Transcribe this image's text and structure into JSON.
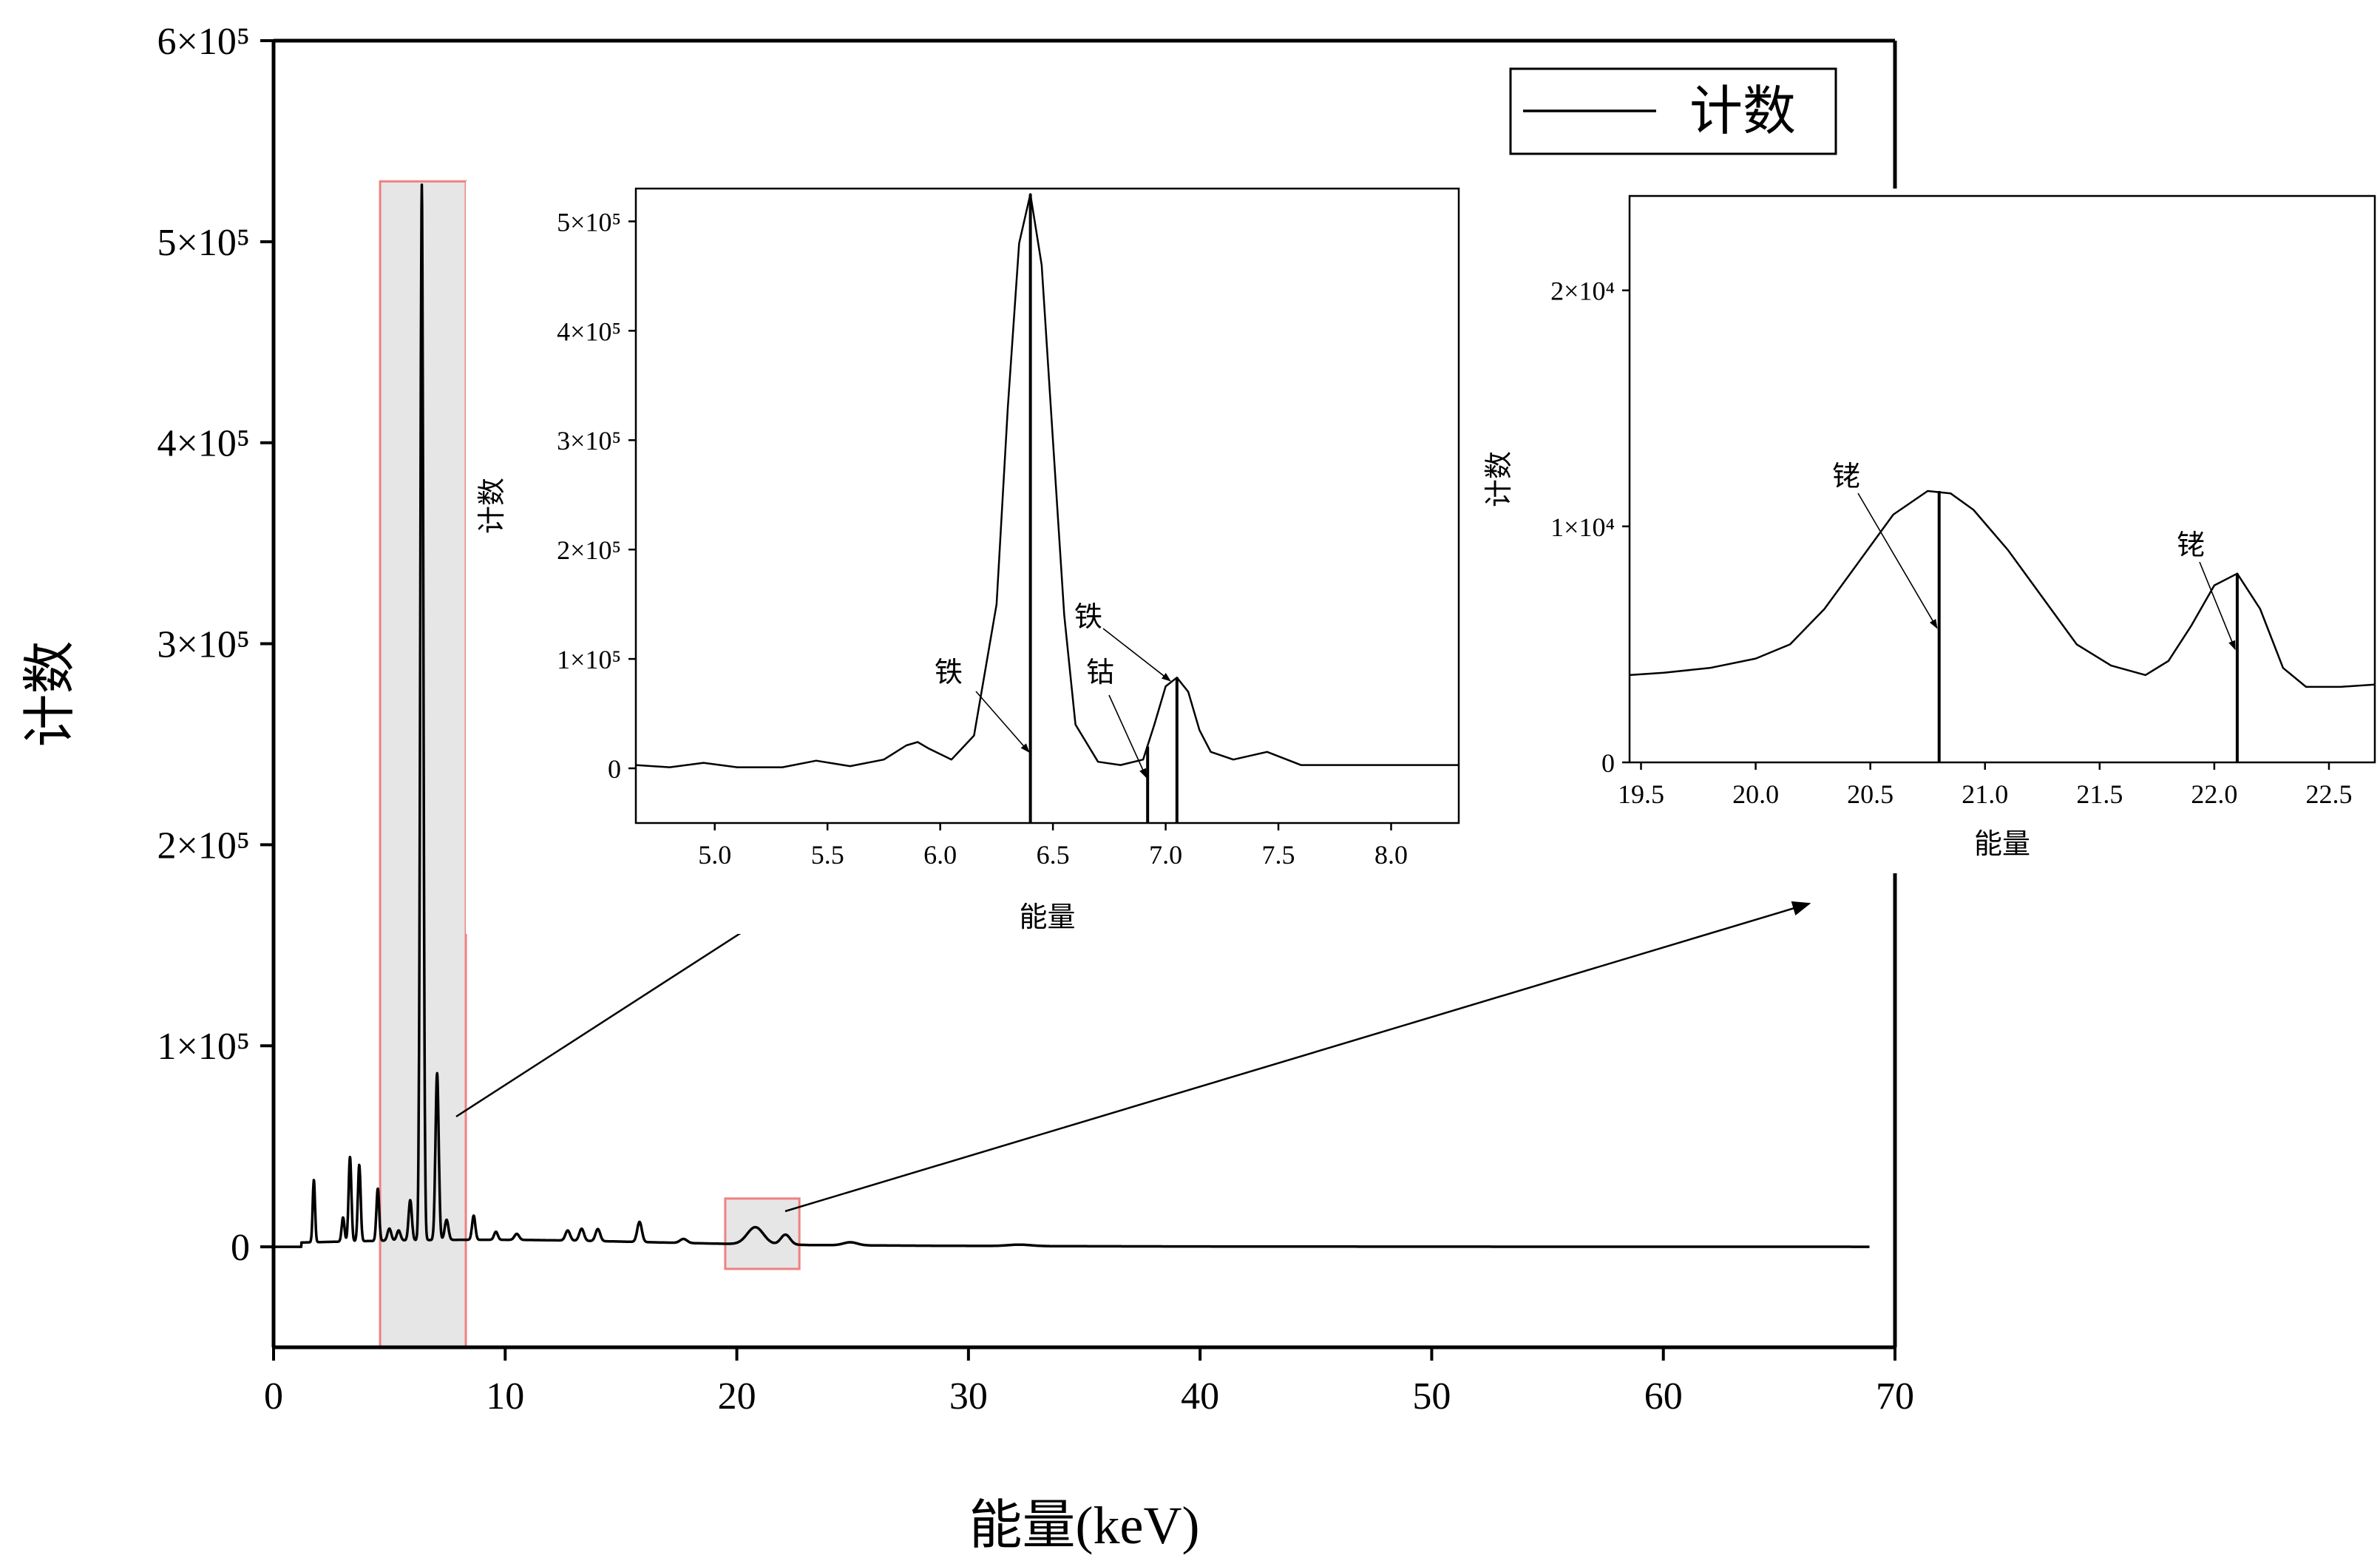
{
  "colors": {
    "line": "#000000",
    "highlight_fill": "#e6e6e6",
    "highlight_stroke": "#f08080"
  },
  "chart_data": [
    {
      "type": "line",
      "id": "main",
      "title": "",
      "xlabel": "能量(keV)",
      "ylabel": "计数",
      "xlim": [
        0,
        70
      ],
      "ylim": [
        -50000,
        600000
      ],
      "xticks": [
        0,
        10,
        20,
        30,
        40,
        50,
        60,
        70
      ],
      "yticks": [
        0,
        100000,
        200000,
        300000,
        400000,
        500000,
        600000
      ],
      "ytick_labels": [
        "0",
        "1×10⁵",
        "2×10⁵",
        "3×10⁵",
        "4×10⁵",
        "5×10⁵",
        "6×10⁵"
      ],
      "legend": {
        "position": "top-right",
        "entries": [
          "计数"
        ]
      },
      "series": [
        {
          "name": "计数",
          "peaks": [
            {
              "x": 1.74,
              "y": 31000,
              "w": 0.05
            },
            {
              "x": 3.0,
              "y": 12000,
              "w": 0.06
            },
            {
              "x": 3.3,
              "y": 42000,
              "w": 0.06
            },
            {
              "x": 3.7,
              "y": 38000,
              "w": 0.06
            },
            {
              "x": 4.5,
              "y": 26000,
              "w": 0.06
            },
            {
              "x": 5.0,
              "y": 6000,
              "w": 0.08
            },
            {
              "x": 5.4,
              "y": 5000,
              "w": 0.08
            },
            {
              "x": 5.9,
              "y": 20000,
              "w": 0.07
            },
            {
              "x": 6.4,
              "y": 525000,
              "w": 0.065
            },
            {
              "x": 7.06,
              "y": 83000,
              "w": 0.07
            },
            {
              "x": 7.47,
              "y": 10000,
              "w": 0.08
            },
            {
              "x": 8.64,
              "y": 12000,
              "w": 0.07
            },
            {
              "x": 9.6,
              "y": 4000,
              "w": 0.08
            },
            {
              "x": 10.5,
              "y": 3000,
              "w": 0.1
            },
            {
              "x": 12.7,
              "y": 5000,
              "w": 0.1
            },
            {
              "x": 13.3,
              "y": 6000,
              "w": 0.1
            },
            {
              "x": 14.0,
              "y": 6000,
              "w": 0.1
            },
            {
              "x": 15.8,
              "y": 10000,
              "w": 0.1
            },
            {
              "x": 17.7,
              "y": 2000,
              "w": 0.15
            },
            {
              "x": 20.8,
              "y": 8500,
              "w": 0.35
            },
            {
              "x": 22.1,
              "y": 5000,
              "w": 0.2
            },
            {
              "x": 24.9,
              "y": 1500,
              "w": 0.3
            },
            {
              "x": 32.2,
              "y": 700,
              "w": 0.5
            }
          ],
          "x_end": 68.9
        }
      ],
      "highlights": [
        {
          "x0": 4.6,
          "x1": 8.3,
          "y0": -50000,
          "y1": 530000
        },
        {
          "x0": 19.5,
          "x1": 22.7,
          "y0": -11000,
          "y1": 24000
        }
      ]
    },
    {
      "type": "line",
      "id": "inset1",
      "xlabel": "能量",
      "ylabel": "计数",
      "xlim": [
        4.65,
        8.3
      ],
      "ylim": [
        -50000,
        530000
      ],
      "xticks": [
        5.0,
        5.5,
        6.0,
        6.5,
        7.0,
        7.5,
        8.0
      ],
      "xtick_labels": [
        "5.0",
        "5.5",
        "6.0",
        "6.5",
        "7.0",
        "7.5",
        "8.0"
      ],
      "yticks": [
        0,
        100000,
        200000,
        300000,
        400000,
        500000
      ],
      "ytick_labels": [
        "0",
        "1×10⁵",
        "2×10⁵",
        "3×10⁵",
        "4×10⁵",
        "5×10⁵"
      ],
      "series": [
        {
          "name": "计数",
          "x": [
            4.65,
            4.8,
            4.95,
            5.1,
            5.3,
            5.45,
            5.6,
            5.75,
            5.85,
            5.9,
            5.95,
            6.05,
            6.15,
            6.25,
            6.3,
            6.35,
            6.4,
            6.45,
            6.5,
            6.55,
            6.6,
            6.7,
            6.8,
            6.9,
            6.95,
            7.0,
            7.05,
            7.1,
            7.15,
            7.2,
            7.3,
            7.45,
            7.6,
            7.8,
            8.0,
            8.3
          ],
          "y": [
            3000,
            1000,
            5000,
            1000,
            1000,
            7000,
            2000,
            8000,
            21000,
            24000,
            18000,
            8000,
            30000,
            150000,
            330000,
            480000,
            525000,
            460000,
            300000,
            140000,
            40000,
            6000,
            3000,
            8000,
            40000,
            75000,
            83000,
            70000,
            35000,
            15000,
            8000,
            15000,
            3000,
            3000,
            3000,
            3000
          ]
        }
      ],
      "markers": [
        {
          "x": 6.4,
          "label": "铁",
          "y_top": 525000
        },
        {
          "x": 6.92,
          "label": "钴",
          "y_top": 20000
        },
        {
          "x": 7.05,
          "label": "铁",
          "y_top": 83000
        }
      ]
    },
    {
      "type": "line",
      "id": "inset2",
      "xlabel": "能量",
      "ylabel": "计数",
      "xlim": [
        19.45,
        22.7
      ],
      "ylim": [
        0,
        24000
      ],
      "xticks": [
        19.5,
        20.0,
        20.5,
        21.0,
        21.5,
        22.0,
        22.5
      ],
      "xtick_labels": [
        "19.5",
        "20.0",
        "20.5",
        "21.0",
        "21.5",
        "22.0",
        "22.5"
      ],
      "yticks": [
        0,
        10000,
        20000
      ],
      "ytick_labels": [
        "0",
        "1×10⁴",
        "2×10⁴"
      ],
      "series": [
        {
          "name": "计数",
          "x": [
            19.45,
            19.6,
            19.8,
            20.0,
            20.15,
            20.3,
            20.45,
            20.6,
            20.75,
            20.85,
            20.95,
            21.1,
            21.25,
            21.4,
            21.55,
            21.7,
            21.8,
            21.9,
            22.0,
            22.1,
            22.2,
            22.3,
            22.4,
            22.55,
            22.7
          ],
          "y": [
            3700,
            3800,
            4000,
            4400,
            5000,
            6500,
            8500,
            10500,
            11500,
            11400,
            10700,
            9000,
            7000,
            5000,
            4100,
            3700,
            4300,
            5800,
            7500,
            8000,
            6500,
            4000,
            3200,
            3200,
            3300
          ]
        }
      ],
      "markers": [
        {
          "x": 20.8,
          "label": "铑",
          "y_top": 11500
        },
        {
          "x": 22.1,
          "label": "铑",
          "y_top": 8000
        }
      ]
    }
  ]
}
